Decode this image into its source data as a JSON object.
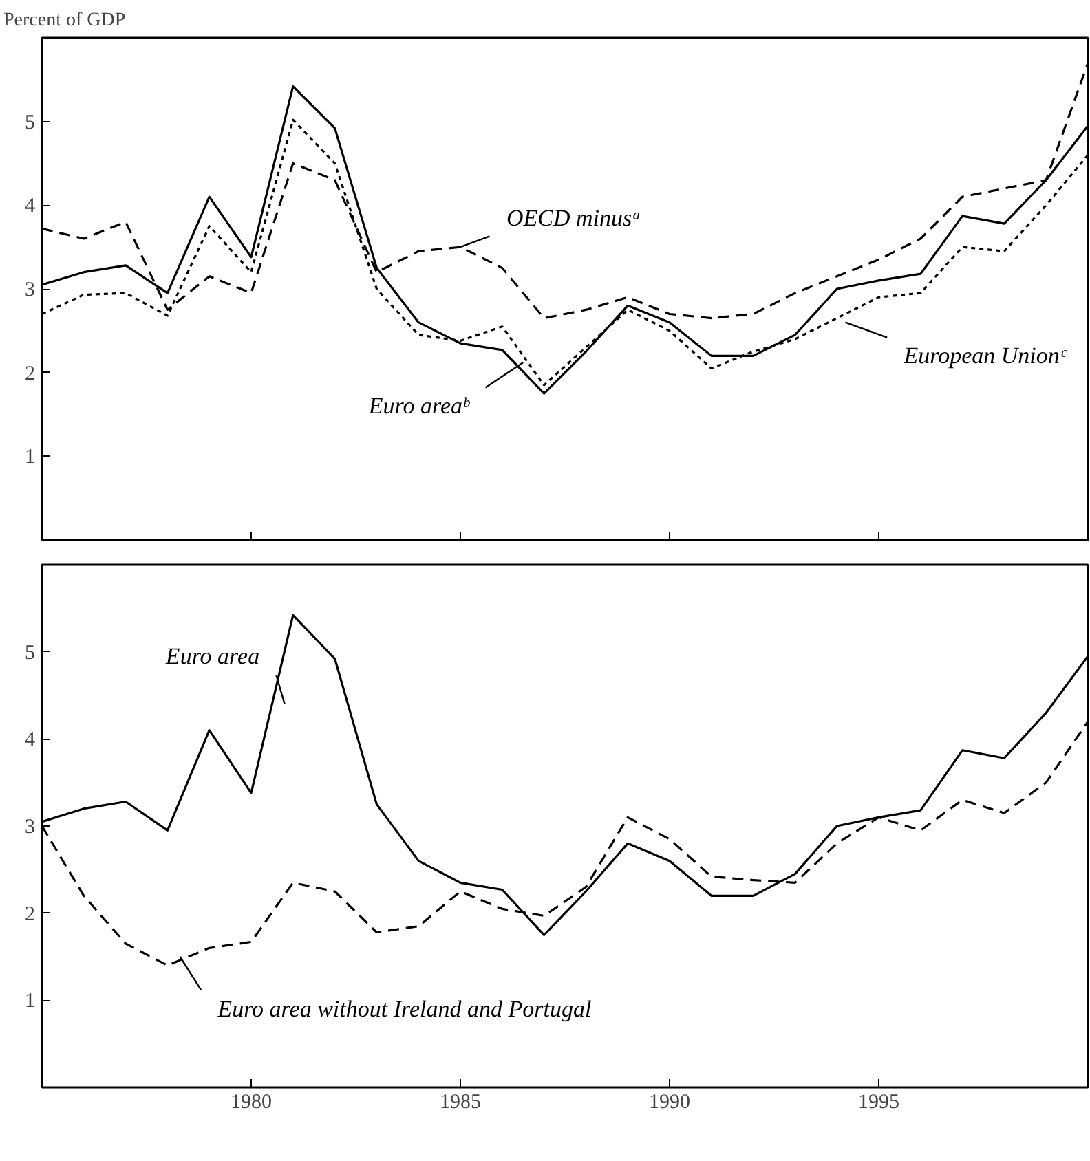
{
  "chart_data": [
    {
      "type": "line",
      "ylabel": "Percent of GDP",
      "x": [
        1975,
        1976,
        1977,
        1978,
        1979,
        1980,
        1981,
        1982,
        1983,
        1984,
        1985,
        1986,
        1987,
        1988,
        1989,
        1990,
        1991,
        1992,
        1993,
        1994,
        1995,
        1996,
        1997,
        1998,
        1999,
        2000
      ],
      "xlim": [
        1975,
        2000
      ],
      "ylim": [
        0,
        6
      ],
      "xticks": [
        1980,
        1985,
        1990,
        1995
      ],
      "yticks": [
        1,
        2,
        3,
        4,
        5
      ],
      "tick_labels": "y",
      "grid": false,
      "legend": false,
      "marker": "none",
      "series": [
        {
          "name": "OECD minusᵃ",
          "color": "#000000",
          "line_style": "dashed",
          "values": [
            3.72,
            3.6,
            3.8,
            2.75,
            3.15,
            2.95,
            4.5,
            4.3,
            3.2,
            3.45,
            3.5,
            3.25,
            2.65,
            2.75,
            2.9,
            2.7,
            2.65,
            2.7,
            2.95,
            3.15,
            3.35,
            3.6,
            4.1,
            4.2,
            4.3,
            5.7
          ]
        },
        {
          "name": "Euro areaᵇ",
          "color": "#000000",
          "line_style": "solid",
          "values": [
            3.05,
            3.2,
            3.28,
            2.95,
            4.1,
            3.38,
            5.42,
            4.92,
            3.25,
            2.6,
            2.35,
            2.27,
            1.75,
            2.25,
            2.8,
            2.6,
            2.2,
            2.2,
            2.45,
            3.0,
            3.1,
            3.18,
            3.87,
            3.78,
            4.3,
            4.95
          ]
        },
        {
          "name": "European Unionᶜ",
          "color": "#000000",
          "line_style": "dotted",
          "values": [
            2.7,
            2.93,
            2.95,
            2.68,
            3.75,
            3.2,
            5.02,
            4.5,
            3.0,
            2.45,
            2.38,
            2.55,
            1.85,
            2.3,
            2.75,
            2.5,
            2.05,
            2.25,
            2.4,
            2.65,
            2.9,
            2.95,
            3.5,
            3.45,
            4.0,
            4.6
          ]
        }
      ]
    },
    {
      "type": "line",
      "x": [
        1975,
        1976,
        1977,
        1978,
        1979,
        1980,
        1981,
        1982,
        1983,
        1984,
        1985,
        1986,
        1987,
        1988,
        1989,
        1990,
        1991,
        1992,
        1993,
        1994,
        1995,
        1996,
        1997,
        1998,
        1999,
        2000
      ],
      "xlim": [
        1975,
        2000
      ],
      "ylim": [
        0,
        6
      ],
      "xticks": [
        1980,
        1985,
        1990,
        1995
      ],
      "yticks": [
        1,
        2,
        3,
        4,
        5
      ],
      "grid": false,
      "legend": false,
      "marker": "none",
      "series": [
        {
          "name": "Euro area",
          "color": "#000000",
          "line_style": "solid",
          "values": [
            3.05,
            3.2,
            3.28,
            2.95,
            4.1,
            3.38,
            5.42,
            4.92,
            3.25,
            2.6,
            2.35,
            2.27,
            1.75,
            2.25,
            2.8,
            2.6,
            2.2,
            2.2,
            2.45,
            3.0,
            3.1,
            3.18,
            3.87,
            3.78,
            4.3,
            4.95
          ]
        },
        {
          "name": "Euro area without Ireland and Portugal",
          "color": "#000000",
          "line_style": "dashed",
          "values": [
            3.0,
            2.2,
            1.65,
            1.4,
            1.6,
            1.67,
            2.35,
            2.25,
            1.78,
            1.85,
            2.25,
            2.05,
            1.97,
            2.3,
            3.1,
            2.85,
            2.42,
            2.38,
            2.35,
            2.8,
            3.1,
            2.95,
            3.3,
            3.15,
            3.5,
            4.2
          ]
        }
      ]
    }
  ]
}
